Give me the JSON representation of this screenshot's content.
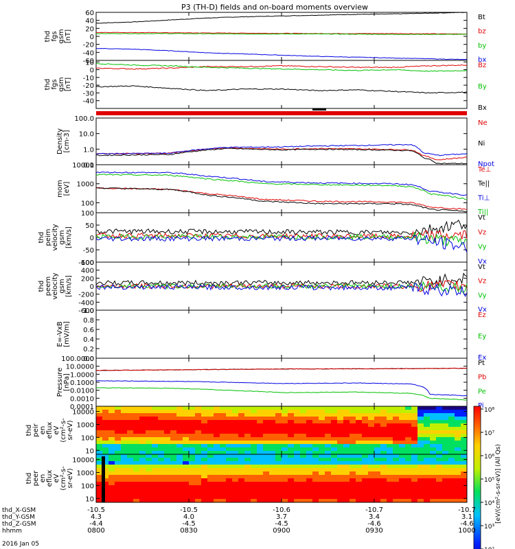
{
  "title": "P3 (TH-D) fields and on-board moments overview",
  "date_label": "2016 Jan 05",
  "colors": {
    "black": "#000000",
    "red": "#e00000",
    "green": "#00c000",
    "blue": "#0000e0"
  },
  "ephemeris": {
    "row_labels": [
      "thd_X-GSM",
      "thd_Y-GSM",
      "thd_Z-GSM",
      "hhmm"
    ],
    "ticks": [
      {
        "time": "0800",
        "X": "-10.5",
        "Y": "4.3",
        "Z": "-4.4"
      },
      {
        "time": "0830",
        "X": "-10.5",
        "Y": "4.0",
        "Z": "-4.5"
      },
      {
        "time": "0900",
        "X": "-10.6",
        "Y": "3.7",
        "Z": "-4.5"
      },
      {
        "time": "0930",
        "X": "-10.7",
        "Y": "3.4",
        "Z": "-4.6"
      },
      {
        "time": "1000",
        "X": "-10.7",
        "Y": "3.1",
        "Z": "-4.6"
      }
    ]
  },
  "chart_data": [
    {
      "type": "line",
      "id": "fgs_bt",
      "ylabel": [
        "thd",
        "fgs",
        "gsm",
        "[nT]"
      ],
      "ylim": [
        -60,
        60
      ],
      "ytick_labels": [
        "60",
        "40",
        "20",
        "0",
        "-20",
        "-40",
        "-60"
      ],
      "ytick_values": [
        60,
        40,
        20,
        0,
        -20,
        -40,
        -60
      ],
      "series": [
        {
          "name": "Bt",
          "color": "#000000",
          "x": [
            0,
            0.1,
            0.2,
            0.3,
            0.4,
            0.5,
            0.6,
            0.7,
            0.8,
            0.9,
            1
          ],
          "y": [
            33,
            36,
            41,
            46,
            49,
            51,
            53,
            55,
            56,
            58,
            60
          ]
        },
        {
          "name": "bz",
          "color": "#e00000",
          "x": [
            0,
            0.2,
            0.4,
            0.6,
            0.8,
            1
          ],
          "y": [
            10,
            9,
            8,
            7,
            7,
            6
          ]
        },
        {
          "name": "by",
          "color": "#00c000",
          "x": [
            0,
            0.2,
            0.4,
            0.6,
            0.8,
            1
          ],
          "y": [
            7,
            7,
            6,
            6,
            5,
            5
          ]
        },
        {
          "name": "bx",
          "color": "#0000e0",
          "x": [
            0,
            0.1,
            0.2,
            0.3,
            0.4,
            0.5,
            0.6,
            0.7,
            0.8,
            0.9,
            1
          ],
          "y": [
            -30,
            -32,
            -36,
            -41,
            -44,
            -47,
            -50,
            -52,
            -54,
            -56,
            -58
          ]
        }
      ]
    },
    {
      "type": "line",
      "id": "fgs_b",
      "ylabel": [
        "thd",
        "fgs",
        "gsm",
        "[nT]"
      ],
      "ylim": [
        -50,
        12
      ],
      "ytick_labels": [
        "10",
        "0",
        "-10",
        "-20",
        "-30",
        "-40"
      ],
      "ytick_values": [
        10,
        0,
        -10,
        -20,
        -30,
        -40
      ],
      "series": [
        {
          "name": "Bz",
          "color": "#e00000",
          "x": [
            0,
            0.1,
            0.2,
            0.3,
            0.4,
            0.5,
            0.6,
            0.7,
            0.8,
            0.9,
            1
          ],
          "y": [
            2,
            1,
            2,
            4,
            4,
            5,
            4,
            3,
            3,
            5,
            6
          ]
        },
        {
          "name": "By",
          "color": "#00c000",
          "x": [
            0,
            0.1,
            0.2,
            0.3,
            0.4,
            0.5,
            0.6,
            0.7,
            0.8,
            0.9,
            1
          ],
          "y": [
            8,
            6,
            5,
            3,
            2,
            1,
            0,
            -1,
            0,
            -2,
            -1
          ]
        },
        {
          "name": "Bx",
          "color": "#000000",
          "x": [
            0,
            0.1,
            0.2,
            0.3,
            0.4,
            0.5,
            0.6,
            0.7,
            0.8,
            0.9,
            1
          ],
          "y": [
            -22,
            -21,
            -24,
            -27,
            -25,
            -25,
            -27,
            -26,
            -28,
            -30,
            -29
          ]
        }
      ]
    },
    {
      "type": "line",
      "id": "density",
      "log": true,
      "ylabel": [
        "Density",
        "[cm-3]"
      ],
      "ylim": [
        0.1,
        100
      ],
      "ytick_labels": [
        "100.0",
        "10.0",
        "1.0",
        "0.1"
      ],
      "ytick_values": [
        100,
        10,
        1,
        0.1
      ],
      "series": [
        {
          "name": "Ne",
          "color": "#e00000",
          "x": [
            0,
            0.2,
            0.35,
            0.5,
            0.6,
            0.75,
            0.85,
            0.88,
            0.92,
            1
          ],
          "y": [
            0.5,
            0.55,
            1.2,
            1.0,
            1.1,
            1.0,
            0.9,
            0.4,
            0.2,
            0.3
          ]
        },
        {
          "name": "Ni",
          "color": "#000000",
          "x": [
            0,
            0.2,
            0.35,
            0.5,
            0.6,
            0.75,
            0.85,
            0.88,
            0.92,
            1
          ],
          "y": [
            0.4,
            0.45,
            1.1,
            0.9,
            1.0,
            0.9,
            0.8,
            0.3,
            0.12,
            0.12
          ]
        },
        {
          "name": "Npot",
          "color": "#0000e0",
          "x": [
            0,
            0.2,
            0.35,
            0.5,
            0.6,
            0.75,
            0.85,
            0.88,
            0.92,
            1
          ],
          "y": [
            0.5,
            0.55,
            1.3,
            1.4,
            1.6,
            1.8,
            2.0,
            0.6,
            0.4,
            0.5
          ]
        }
      ]
    },
    {
      "type": "line",
      "id": "temperature",
      "log": true,
      "ylabel": [
        "mom",
        "[eV]"
      ],
      "ylim": [
        30,
        10000
      ],
      "ytick_labels": [
        "10000",
        "1000",
        "100"
      ],
      "ytick_values": [
        10000,
        1000,
        100
      ],
      "series": [
        {
          "name": "Te⊥",
          "color": "#e00000",
          "x": [
            0,
            0.2,
            0.3,
            0.45,
            0.6,
            0.8,
            0.85,
            0.9,
            1
          ],
          "y": [
            600,
            500,
            300,
            150,
            120,
            110,
            100,
            60,
            45
          ]
        },
        {
          "name": "Te||",
          "color": "#000000",
          "x": [
            0,
            0.2,
            0.3,
            0.45,
            0.6,
            0.8,
            0.85,
            0.9,
            1
          ],
          "y": [
            600,
            500,
            250,
            120,
            90,
            90,
            80,
            45,
            35
          ]
        },
        {
          "name": "Ti⊥",
          "color": "#0000e0",
          "x": [
            0,
            0.2,
            0.3,
            0.45,
            0.6,
            0.8,
            0.85,
            0.9,
            1
          ],
          "y": [
            4000,
            3800,
            2500,
            1300,
            1100,
            1000,
            900,
            400,
            250
          ]
        },
        {
          "name": "Ti||",
          "color": "#00c000",
          "x": [
            0,
            0.2,
            0.3,
            0.45,
            0.6,
            0.8,
            0.85,
            0.9,
            1
          ],
          "y": [
            3000,
            2800,
            1800,
            1000,
            900,
            800,
            700,
            300,
            150
          ]
        }
      ]
    },
    {
      "type": "line",
      "id": "peim_velocity",
      "noise": true,
      "ylabel": [
        "thd",
        "peim",
        "velocity",
        "gsm",
        "[km/s]"
      ],
      "ylim": [
        -100,
        100
      ],
      "ytick_labels": [
        "100",
        "50",
        "0",
        "-50",
        "-100"
      ],
      "ytick_values": [
        100,
        50,
        0,
        -50,
        -100
      ],
      "series": [
        {
          "name": "Vt",
          "color": "#000000",
          "x": [
            0,
            0.85,
            1
          ],
          "y": [
            25,
            20,
            60
          ]
        },
        {
          "name": "Vz",
          "color": "#e00000",
          "x": [
            0,
            0.85,
            1
          ],
          "y": [
            8,
            4,
            10
          ]
        },
        {
          "name": "Vy",
          "color": "#00c000",
          "x": [
            0,
            0.85,
            1
          ],
          "y": [
            3,
            2,
            -20
          ]
        },
        {
          "name": "Vx",
          "color": "#0000e0",
          "x": [
            0,
            0.85,
            1
          ],
          "y": [
            -5,
            -3,
            -40
          ]
        }
      ]
    },
    {
      "type": "line",
      "id": "peem_velocity",
      "noise": true,
      "ylabel": [
        "thd",
        "peem",
        "velocity",
        "gsm",
        "[km/s]"
      ],
      "ylim": [
        -600,
        600
      ],
      "ytick_labels": [
        "600",
        "400",
        "200",
        "0",
        "-200",
        "-400",
        "-600"
      ],
      "ytick_values": [
        600,
        400,
        200,
        0,
        -200,
        -400,
        -600
      ],
      "series": [
        {
          "name": "Vt",
          "color": "#000000",
          "x": [
            0,
            0.85,
            1
          ],
          "y": [
            80,
            90,
            200
          ]
        },
        {
          "name": "Vz",
          "color": "#e00000",
          "x": [
            0,
            0.85,
            1
          ],
          "y": [
            0,
            0,
            20
          ]
        },
        {
          "name": "Vy",
          "color": "#00c000",
          "x": [
            0,
            0.85,
            1
          ],
          "y": [
            0,
            0,
            -30
          ]
        },
        {
          "name": "Vx",
          "color": "#0000e0",
          "x": [
            0,
            0.85,
            1
          ],
          "y": [
            -20,
            -40,
            -150
          ]
        }
      ]
    },
    {
      "type": "line",
      "id": "efield",
      "ylabel": [
        "E=-VxB",
        "[mV/m]"
      ],
      "ylim": [
        0,
        1
      ],
      "ytick_labels": [
        "1.0",
        "0.8",
        "0.6",
        "0.4",
        "0.2",
        "0.0"
      ],
      "ytick_values": [
        1,
        0.8,
        0.6,
        0.4,
        0.2,
        0
      ],
      "series": [
        {
          "name": "Ez",
          "color": "#e00000",
          "x": [],
          "y": []
        },
        {
          "name": "Ey",
          "color": "#00c000",
          "x": [],
          "y": []
        },
        {
          "name": "Ex",
          "color": "#0000e0",
          "x": [],
          "y": []
        }
      ]
    },
    {
      "type": "line",
      "id": "pressure",
      "log": true,
      "ylabel": [
        "Pressure",
        "[nPa]"
      ],
      "ylim": [
        0.0001,
        100
      ],
      "ytick_labels": [
        "100.0000",
        "10.0000",
        "1.0000",
        "0.1000",
        "0.0100",
        "0.0010",
        "0.0001"
      ],
      "ytick_values": [
        100,
        10,
        1,
        0.1,
        0.01,
        0.001,
        0.0001
      ],
      "series": [
        {
          "name": "Pt",
          "color": "#000000",
          "x": [
            0,
            0.2,
            0.5,
            0.8,
            1
          ],
          "y": [
            3,
            3.5,
            4.5,
            5,
            5.5
          ]
        },
        {
          "name": "Pb",
          "color": "#e00000",
          "x": [
            0,
            0.2,
            0.5,
            0.8,
            1
          ],
          "y": [
            3,
            3.5,
            4.5,
            5,
            5.5
          ]
        },
        {
          "name": "Pe",
          "color": "#00c000",
          "x": [
            0,
            0.2,
            0.35,
            0.5,
            0.7,
            0.85,
            0.9,
            1
          ],
          "y": [
            0.02,
            0.018,
            0.01,
            0.005,
            0.006,
            0.004,
            0.001,
            0.0006
          ]
        },
        {
          "name": "Pi",
          "color": "#0000e0",
          "x": [
            0,
            0.2,
            0.35,
            0.5,
            0.7,
            0.85,
            0.9,
            1
          ],
          "y": [
            0.15,
            0.13,
            0.1,
            0.07,
            0.08,
            0.06,
            0.003,
            0.002
          ]
        }
      ]
    },
    {
      "type": "heatmap",
      "id": "peir_spectrogram",
      "ylabel": [
        "thd",
        "peir",
        "en",
        "eflux",
        "eV",
        "(cm²-s-",
        "sr-eV)"
      ],
      "ytick_labels": [
        "10000",
        "1000",
        "100",
        "10"
      ],
      "ytick_values": [
        10000,
        1000,
        100,
        10
      ]
    },
    {
      "type": "heatmap",
      "id": "peer_spectrogram",
      "ylabel": [
        "thd",
        "peer",
        "en",
        "eflux",
        "eV",
        "(cm²-s-",
        "sr-eV)"
      ],
      "ytick_labels": [
        "10000",
        "1000",
        "100",
        "10"
      ],
      "ytick_values": [
        10000,
        1000,
        100,
        10
      ]
    }
  ],
  "colorbar": {
    "labels": [
      "10⁸",
      "10⁷",
      "10⁶",
      "10⁵",
      "10⁴",
      "10³",
      "10²"
    ],
    "units": "[eV/(cm²-s-sr-eV)] (All Qs)"
  }
}
